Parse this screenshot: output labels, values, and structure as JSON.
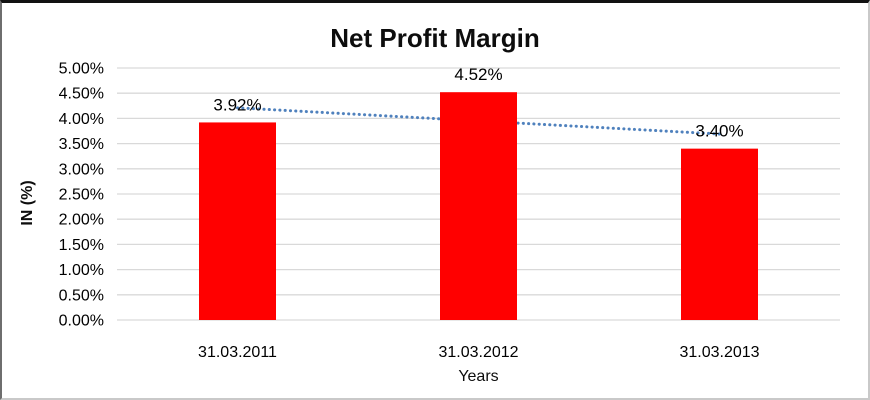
{
  "chart_data": {
    "type": "bar",
    "title": "Net Profit Margin",
    "xlabel": "Years",
    "ylabel": "IN (%)",
    "categories": [
      "31.03.2011",
      "31.03.2012",
      "31.03.2013"
    ],
    "values": [
      3.92,
      4.52,
      3.4
    ],
    "data_labels": [
      "3.92%",
      "4.52%",
      "3.40%"
    ],
    "ylim": [
      0,
      5
    ],
    "ytick_step": 0.5,
    "ytick_labels": [
      "0.00%",
      "0.50%",
      "1.00%",
      "1.50%",
      "2.00%",
      "2.50%",
      "3.00%",
      "3.50%",
      "4.00%",
      "4.50%",
      "5.00%"
    ],
    "grid": true,
    "legend": "none",
    "bar_color": "#FF0000",
    "gridline_color": "#D9D9D9",
    "text_color": "#000000",
    "trendline": {
      "type": "linear",
      "style": "dotted",
      "color": "#4F81BD",
      "start_value": 4.21,
      "end_value": 3.69
    }
  }
}
